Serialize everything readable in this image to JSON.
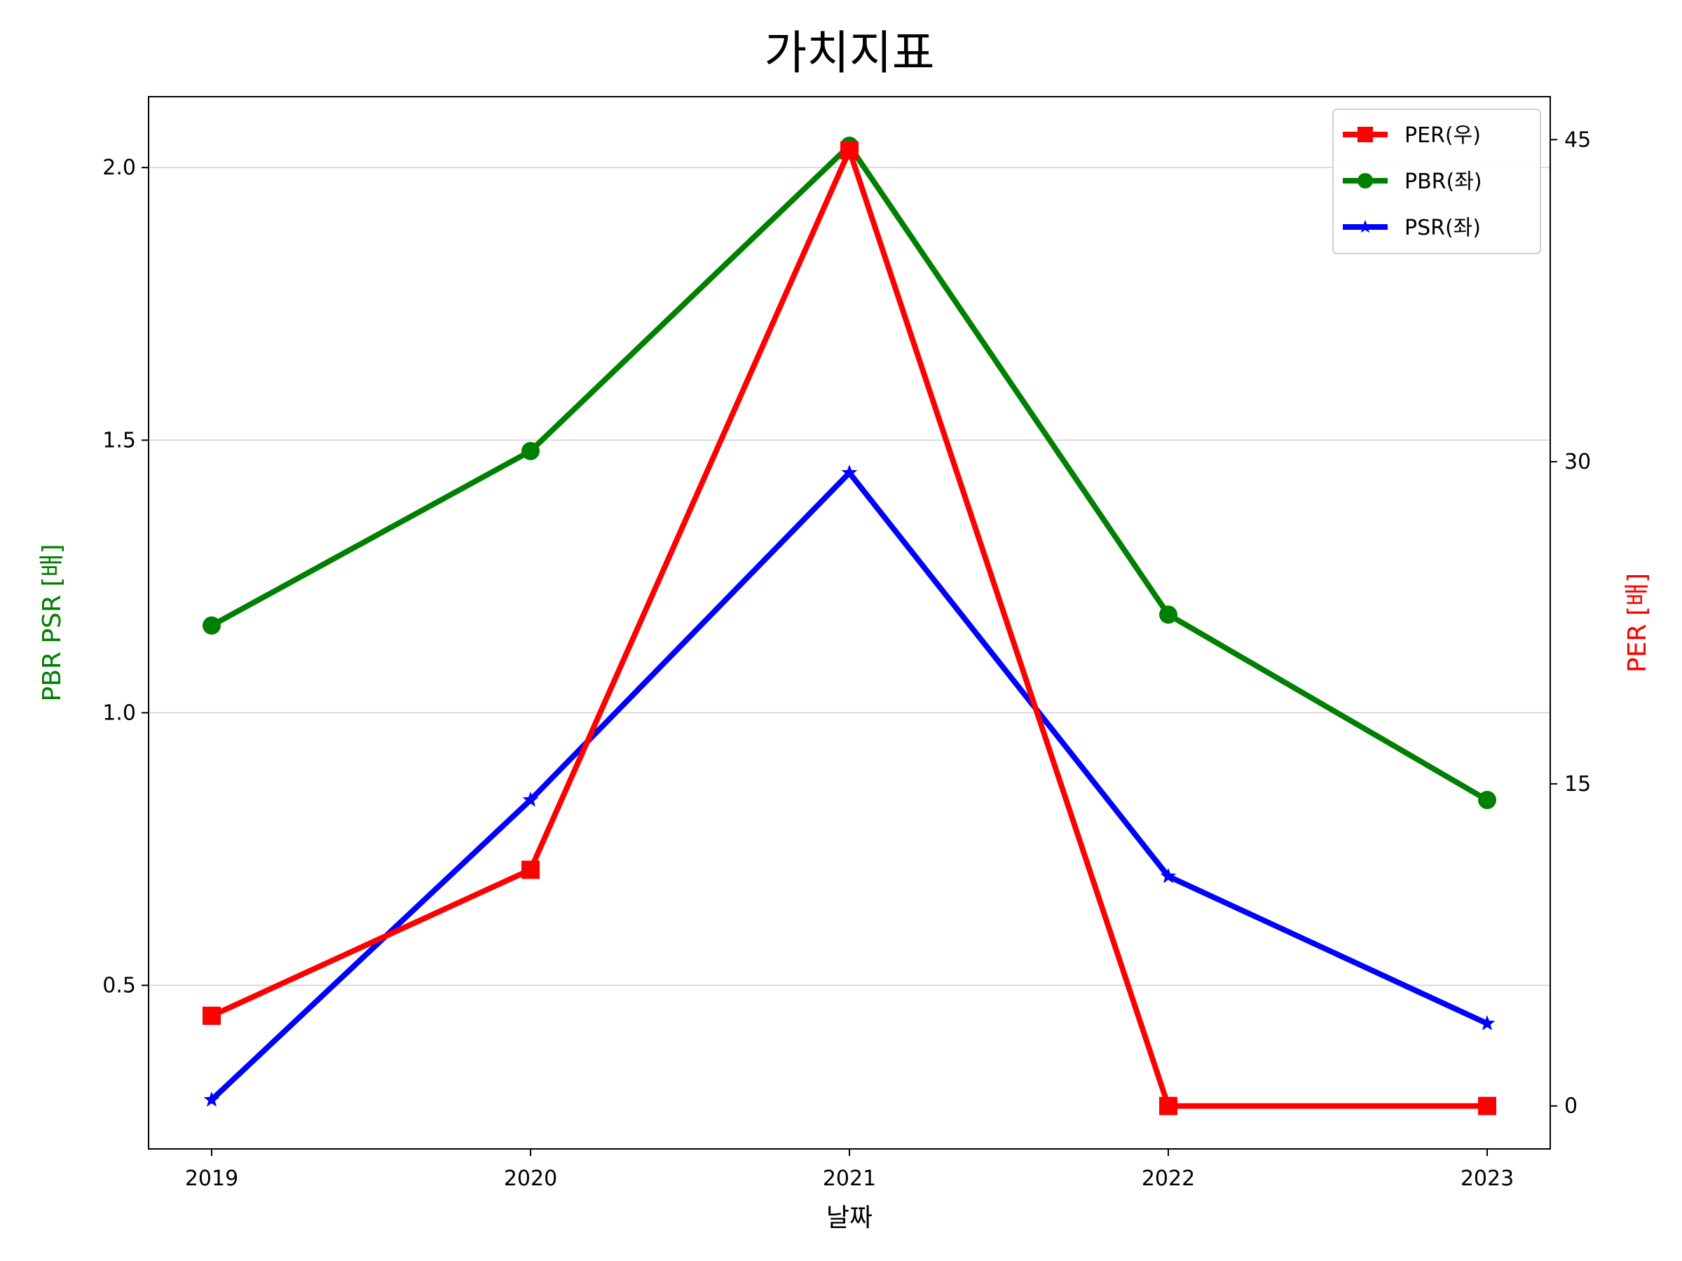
{
  "chart_data": {
    "type": "line",
    "title": "가치지표",
    "xlabel": "날짜",
    "ylabel_left": "PBR PSR [배]",
    "ylabel_right": "PER [배]",
    "categories": [
      "2019",
      "2020",
      "2021",
      "2022",
      "2023"
    ],
    "left_axis": {
      "ylim": [
        0.2,
        2.13
      ],
      "ticks": [
        0.5,
        1.0,
        1.5,
        2.0
      ],
      "tick_labels": [
        "0.5",
        "1.0",
        "1.5",
        "2.0"
      ],
      "grid": true
    },
    "right_axis": {
      "ylim": [
        -2.0,
        47.0
      ],
      "ticks": [
        0,
        15,
        30,
        45
      ],
      "tick_labels": [
        "0",
        "15",
        "30",
        "45"
      ]
    },
    "series": [
      {
        "name": "PER(우)",
        "axis": "right",
        "color": "#ff0000",
        "marker": "square",
        "values": [
          4.2,
          11.0,
          44.5,
          0.0,
          0.0
        ]
      },
      {
        "name": "PBR(좌)",
        "axis": "left",
        "color": "#008000",
        "marker": "circle",
        "values": [
          1.16,
          1.48,
          2.04,
          1.18,
          0.84
        ]
      },
      {
        "name": "PSR(좌)",
        "axis": "left",
        "color": "#0000ff",
        "marker": "star",
        "values": [
          0.29,
          0.84,
          1.44,
          0.7,
          0.43
        ]
      }
    ],
    "legend": {
      "position": "top-right",
      "order": [
        "PER(우)",
        "PBR(좌)",
        "PSR(좌)"
      ]
    },
    "colors": {
      "left_label": "#008000",
      "right_label": "#ff0000"
    }
  }
}
